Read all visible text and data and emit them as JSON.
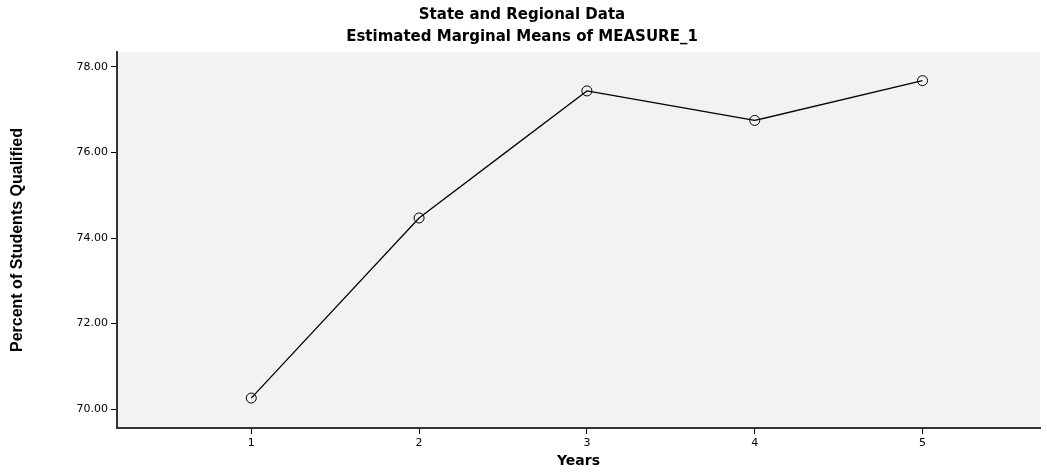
{
  "chart_data": {
    "type": "line",
    "title": "State and Regional Data",
    "subtitle": "Estimated Marginal Means of MEASURE_1",
    "xlabel": "Years",
    "ylabel": "Percent of Students Qualified",
    "x": [
      1,
      2,
      3,
      4,
      5
    ],
    "series": [
      {
        "color": "#000000",
        "values": [
          70.26,
          74.47,
          77.44,
          76.75,
          77.68
        ]
      }
    ],
    "xlim": [
      0.2,
      5.7
    ],
    "xticks": [
      1,
      2,
      3,
      4,
      5
    ],
    "ylim": [
      69.56,
      78.35
    ],
    "yticks": [
      {
        "value": 70,
        "label": "70.00"
      },
      {
        "value": 72,
        "label": "72.00"
      },
      {
        "value": 74,
        "label": "74.00"
      },
      {
        "value": 76,
        "label": "76.00"
      },
      {
        "value": 78,
        "label": "78.00"
      }
    ],
    "grid": false,
    "legend": false,
    "marker": "circle",
    "line_style": "solid"
  }
}
